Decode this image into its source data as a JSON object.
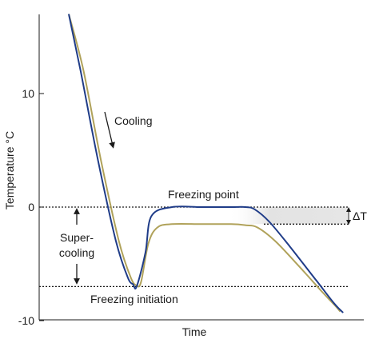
{
  "chart_data": {
    "type": "line",
    "title": "",
    "xlabel": "Time",
    "ylabel": "Temperature °C",
    "ylim": [
      -10,
      17
    ],
    "yticks": [
      10,
      0,
      -10
    ],
    "xticks": [],
    "grid": false,
    "legend": "none",
    "series": [
      {
        "color": "#1f3c88",
        "x": [
          0.0,
          0.04,
          0.1,
          0.16,
          0.2,
          0.218,
          0.23,
          0.26,
          0.28,
          0.35,
          0.45,
          0.55,
          0.6,
          0.63,
          0.68,
          0.75,
          0.84,
          0.9,
          0.93
        ],
        "y": [
          17,
          12,
          4,
          -3,
          -6.2,
          -6.8,
          -7.0,
          -4,
          -0.8,
          0,
          0,
          0,
          0,
          -0.2,
          -1.3,
          -3.5,
          -6.5,
          -8.5,
          -9.3
        ]
      },
      {
        "color": "#b0a25a",
        "x": [
          0.0,
          0.05,
          0.11,
          0.17,
          0.21,
          0.23,
          0.245,
          0.27,
          0.3,
          0.35,
          0.45,
          0.55,
          0.6,
          0.64,
          0.7,
          0.78,
          0.86,
          0.9,
          0.92
        ],
        "y": [
          17,
          12,
          4,
          -3,
          -6.2,
          -6.9,
          -6.6,
          -3.2,
          -1.8,
          -1.5,
          -1.5,
          -1.5,
          -1.6,
          -1.8,
          -3.0,
          -5.2,
          -7.5,
          -8.6,
          -9.2
        ]
      }
    ],
    "reference_lines": [
      {
        "y": 0,
        "style": "dotted"
      },
      {
        "y": -7,
        "style": "dotted"
      }
    ],
    "annotations": {
      "cooling": "Cooling",
      "freezing_point": "Freezing point",
      "supercooling_line1": "Super-",
      "supercooling_line2": "cooling",
      "freezing_initiation": "Freezing initiation",
      "delta_t": "ΔT"
    },
    "shaded_band": {
      "y_top": 0,
      "y_bottom": -1.5,
      "color": "#dcdcdc"
    }
  }
}
